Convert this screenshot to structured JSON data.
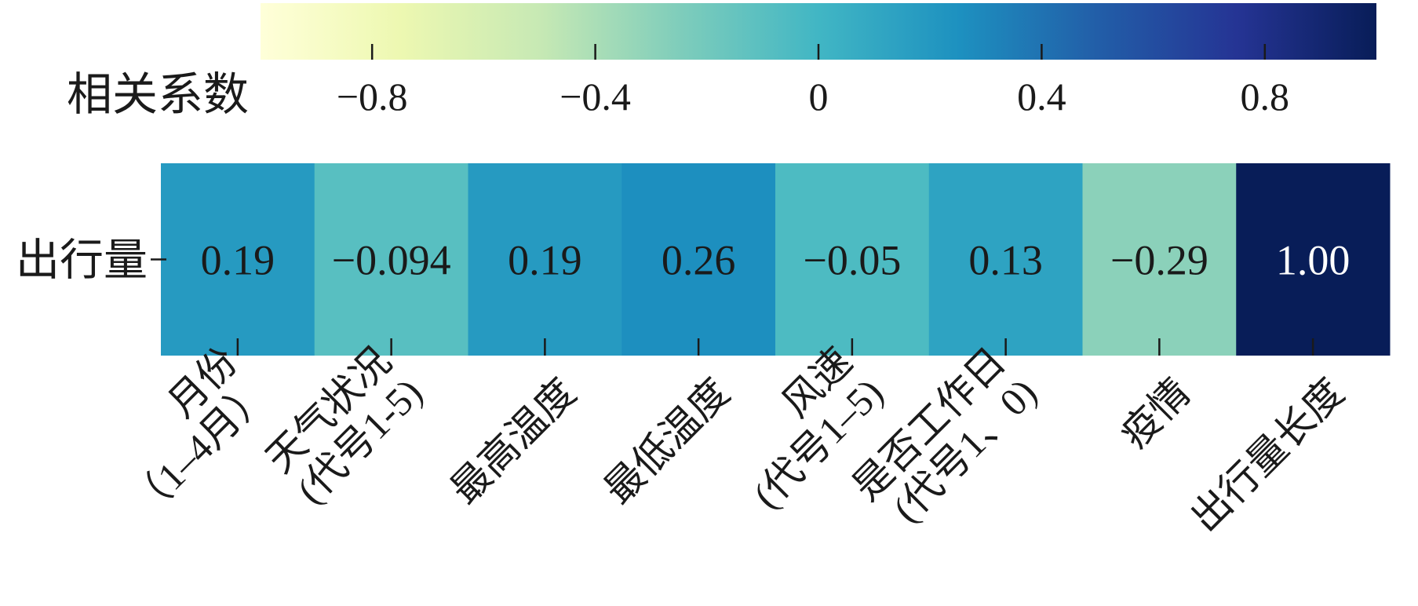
{
  "chart_data": {
    "type": "heatmap",
    "colorbar": {
      "label": "相关系数",
      "range": [
        -1,
        1
      ],
      "ticks": [
        -0.8,
        -0.4,
        0,
        0.4,
        0.8
      ],
      "tick_labels": [
        "−0.8",
        "−0.4",
        "0",
        "0.4",
        "0.8"
      ],
      "colormap": "YlGnBu",
      "placement": "top"
    },
    "rows": [
      "出行量"
    ],
    "columns": [
      [
        "月份",
        "（1–4月）"
      ],
      [
        "天气状况",
        "(代号1-5)"
      ],
      [
        "最高温度"
      ],
      [
        "最低温度"
      ],
      [
        "风速",
        "(代号1–5)"
      ],
      [
        "是否工作日",
        "(代号1、0)"
      ],
      [
        "疫情"
      ],
      [
        "出行量长度"
      ]
    ],
    "values": [
      [
        0.19,
        -0.094,
        0.19,
        0.26,
        -0.05,
        0.13,
        -0.29,
        1.0
      ]
    ],
    "value_labels": [
      [
        "0.19",
        "−0.094",
        "0.19",
        "0.26",
        "−0.05",
        "0.13",
        "−0.29",
        "1.00"
      ]
    ]
  }
}
